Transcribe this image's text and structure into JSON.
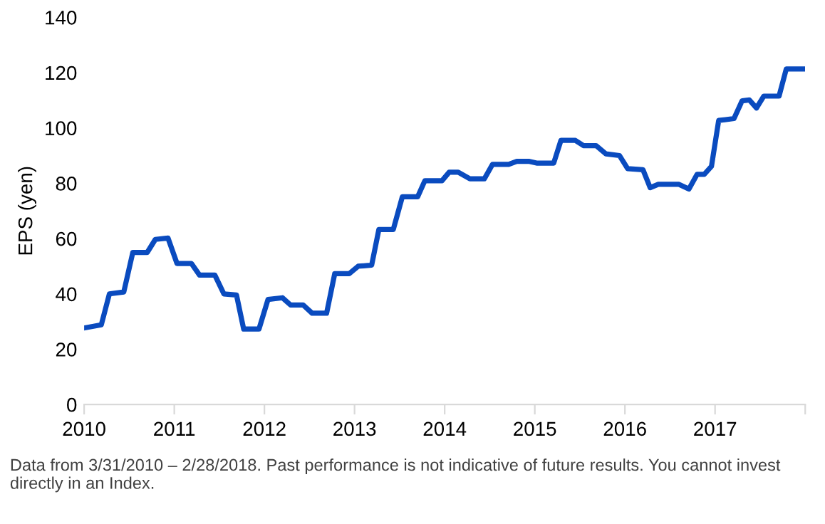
{
  "chart_data": {
    "type": "line",
    "ylabel": "EPS (yen)",
    "x": [
      2010.02,
      2010.19,
      2010.28,
      2010.44,
      2010.54,
      2010.7,
      2010.79,
      2010.93,
      2011.03,
      2011.19,
      2011.28,
      2011.45,
      2011.55,
      2011.69,
      2011.77,
      2011.94,
      2012.04,
      2012.2,
      2012.29,
      2012.43,
      2012.53,
      2012.69,
      2012.78,
      2012.94,
      2013.04,
      2013.19,
      2013.27,
      2013.43,
      2013.53,
      2013.7,
      2013.78,
      2013.97,
      2014.05,
      2014.15,
      2014.28,
      2014.44,
      2014.53,
      2014.71,
      2014.8,
      2014.94,
      2015.02,
      2015.21,
      2015.29,
      2015.45,
      2015.54,
      2015.68,
      2015.79,
      2015.94,
      2016.03,
      2016.2,
      2016.28,
      2016.37,
      2016.6,
      2016.71,
      2016.8,
      2016.88,
      2016.96,
      2017.04,
      2017.21,
      2017.3,
      2017.38,
      2017.46,
      2017.54,
      2017.71,
      2017.79,
      2017.97
    ],
    "series": [
      {
        "color": "#0a4bbf",
        "values": [
          27.8,
          28.8,
          40,
          40.7,
          55,
          55,
          59.7,
          60.2,
          51,
          51,
          46.8,
          46.8,
          40,
          39.6,
          27.3,
          27.3,
          38,
          38.6,
          36,
          36,
          33,
          33,
          47.3,
          47.3,
          50,
          50.4,
          63.3,
          63.3,
          75.1,
          75.1,
          80.9,
          80.9,
          84,
          84,
          81.6,
          81.6,
          86.8,
          86.8,
          87.9,
          87.9,
          87.3,
          87.3,
          95.5,
          95.5,
          93.6,
          93.6,
          90.6,
          90,
          85.3,
          84.9,
          78.4,
          79.6,
          79.6,
          77.9,
          83.2,
          83.2,
          86.1,
          102.7,
          103.4,
          109.8,
          110.1,
          107.2,
          111.5,
          111.5,
          121.3,
          121.3
        ]
      }
    ],
    "xlim": [
      2010,
      2018
    ],
    "xticks": [
      2010,
      2011,
      2012,
      2013,
      2014,
      2015,
      2016,
      2017,
      {
        "value": 2018,
        "label": null
      }
    ],
    "ylim": [
      0,
      140
    ],
    "yticks": [
      0,
      20,
      40,
      60,
      80,
      100,
      120,
      140
    ],
    "grid": false,
    "marker": "none",
    "line_style": "solid",
    "annotations": [
      "Data from 3/31/2010 – 2/28/2018. Past performance is not indicative of future results. You cannot invest directly in an Index."
    ]
  }
}
